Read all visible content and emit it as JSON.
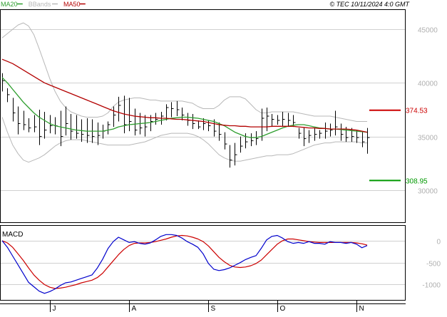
{
  "header": {
    "legend": [
      {
        "label": "MA20",
        "color": "#2e9e2e"
      },
      {
        "label": "BBands",
        "color": "#b8b8b8"
      },
      {
        "label": "MA50",
        "color": "#b30000"
      }
    ],
    "copyright": "© TEC 10/11/2024 4:0 GMT"
  },
  "chart_data": [
    {
      "type": "line",
      "name": "price",
      "x_labels": [
        "J",
        "A",
        "S",
        "O",
        "N"
      ],
      "y_ticks": [
        30000,
        35000,
        40000,
        45000
      ],
      "y_tick_labels": [
        "30000",
        "35000",
        "40000",
        "45000"
      ],
      "ylim": [
        27000,
        46800
      ],
      "grid": true,
      "levels": [
        {
          "value": 37453,
          "label": "374.53",
          "color": "#cc0000"
        },
        {
          "value": 30895,
          "label": "308.95",
          "color": "#009900"
        }
      ],
      "ohlc_series": {
        "name": "price",
        "color": "#000000",
        "high": [
          40900,
          39500,
          38600,
          37800,
          37400,
          36700,
          37000,
          37500,
          37300,
          37000,
          36800,
          37400,
          37800,
          37100,
          37000,
          36600,
          36700,
          36600,
          36300,
          36100,
          36400,
          37800,
          38700,
          38800,
          38600,
          37600,
          37200,
          37000,
          37000,
          37200,
          37300,
          38000,
          38200,
          38300,
          37700,
          37200,
          37100,
          36500,
          36700,
          36500,
          36600,
          36300,
          35400,
          34200,
          34400,
          35000,
          35300,
          35300,
          35500,
          37600,
          37700,
          37100,
          37000,
          37300,
          37200,
          37000,
          35800,
          35800,
          35600,
          35800,
          35600,
          36300,
          36200,
          37400,
          36200,
          35900,
          35800,
          35600,
          35400,
          35800
        ],
        "low": [
          39200,
          38200,
          36400,
          35200,
          35600,
          35400,
          35400,
          34200,
          34800,
          35300,
          35200,
          34100,
          35100,
          34700,
          34800,
          34500,
          34400,
          34400,
          34200,
          34800,
          35200,
          35900,
          36400,
          35300,
          35500,
          35100,
          35200,
          35000,
          35500,
          36100,
          36100,
          36500,
          36800,
          36900,
          36500,
          36000,
          35700,
          35700,
          35600,
          35500,
          35000,
          34600,
          33800,
          32100,
          32300,
          33500,
          33900,
          34100,
          34200,
          34600,
          35500,
          35900,
          36100,
          35900,
          35900,
          35900,
          34800,
          34100,
          34400,
          34600,
          34800,
          34800,
          35000,
          35100,
          34600,
          34500,
          34500,
          34400,
          34000,
          33400
        ],
        "close": [
          40200,
          38900,
          37200,
          36200,
          36100,
          35800,
          35900,
          35000,
          35600,
          36000,
          36000,
          35000,
          36200,
          35500,
          35300,
          35200,
          35100,
          35000,
          35100,
          35500,
          36100,
          37000,
          37900,
          36100,
          36400,
          35600,
          35800,
          35900,
          36400,
          36600,
          36900,
          37700,
          37600,
          37500,
          37000,
          36500,
          36200,
          35900,
          36200,
          36000,
          35500,
          35200,
          34300,
          32800,
          33300,
          34100,
          34500,
          34600,
          34800,
          36700,
          36900,
          36600,
          36500,
          36600,
          36500,
          36300,
          35300,
          34800,
          35100,
          35200,
          35300,
          35500,
          35600,
          35900,
          35200,
          34900,
          35000,
          34900,
          34500,
          34900
        ]
      },
      "series": [
        {
          "name": "MA20",
          "color": "#2e9e2e",
          "values": [
            40500,
            40000,
            39400,
            38800,
            38200,
            37700,
            37200,
            36800,
            36500,
            36200,
            36000,
            35900,
            35800,
            35700,
            35600,
            35550,
            35500,
            35500,
            35500,
            35500,
            35600,
            35700,
            35900,
            36000,
            36100,
            36150,
            36200,
            36250,
            36300,
            36400,
            36500,
            36600,
            36700,
            36750,
            36800,
            36800,
            36750,
            36700,
            36600,
            36500,
            36400,
            36200,
            36000,
            35700,
            35400,
            35200,
            35000,
            34900,
            34900,
            35000,
            35200,
            35400,
            35600,
            35800,
            35950,
            36050,
            36100,
            36100,
            36000,
            35900,
            35800,
            35750,
            35700,
            35700,
            35650,
            35600,
            35550,
            35500,
            35450,
            35400
          ]
        },
        {
          "name": "MA50",
          "color": "#b30000",
          "values": [
            42200,
            42000,
            41800,
            41500,
            41200,
            40900,
            40600,
            40300,
            40000,
            39800,
            39600,
            39400,
            39200,
            39000,
            38800,
            38600,
            38400,
            38200,
            38000,
            37800,
            37600,
            37400,
            37250,
            37100,
            37000,
            36900,
            36850,
            36800,
            36750,
            36750,
            36700,
            36700,
            36650,
            36600,
            36600,
            36550,
            36500,
            36450,
            36400,
            36300,
            36200,
            36100,
            36050,
            36000,
            36000,
            35950,
            35950,
            35900,
            35900,
            35900,
            35900,
            35950,
            35950,
            35950,
            35950,
            35950,
            35900,
            35850,
            35800,
            35800,
            35750,
            35750,
            35700,
            35700,
            35700,
            35700,
            35650,
            35600,
            35500,
            35400
          ]
        },
        {
          "name": "BBands upper",
          "color": "#b8b8b8",
          "values": [
            44200,
            44600,
            45000,
            45400,
            45600,
            45300,
            44500,
            43200,
            41800,
            40400,
            39200,
            38300,
            37700,
            37300,
            37100,
            36900,
            36800,
            36800,
            36800,
            36900,
            37200,
            37800,
            38200,
            38400,
            38500,
            38600,
            38600,
            38500,
            38400,
            38400,
            38300,
            38300,
            38300,
            38300,
            38300,
            38200,
            38100,
            37800,
            37600,
            37600,
            37600,
            37900,
            38400,
            38700,
            38700,
            38700,
            38500,
            38000,
            37500,
            37200,
            37200,
            37300,
            37300,
            37300,
            37300,
            37300,
            37200,
            37100,
            37000,
            36900,
            36900,
            36900,
            36900,
            36800,
            36700,
            36600,
            36500,
            36400,
            36400,
            36400
          ]
        },
        {
          "name": "BBands lower",
          "color": "#b8b8b8",
          "values": [
            36800,
            35400,
            34200,
            33400,
            32800,
            32600,
            32800,
            33000,
            33300,
            33700,
            34100,
            34400,
            34600,
            34700,
            34700,
            34700,
            34600,
            34500,
            34400,
            34300,
            34200,
            34200,
            34200,
            34200,
            34200,
            34300,
            34400,
            34500,
            34700,
            34900,
            35100,
            35200,
            35300,
            35300,
            35300,
            35300,
            35200,
            35000,
            34700,
            34300,
            33800,
            33300,
            33000,
            32800,
            32700,
            32700,
            32800,
            32900,
            33000,
            33100,
            33200,
            33200,
            33300,
            33300,
            33300,
            33400,
            33600,
            33800,
            34000,
            34200,
            34300,
            34400,
            34400,
            34500,
            34500,
            34500,
            34500,
            34500,
            34400,
            34400
          ]
        }
      ]
    },
    {
      "type": "line",
      "name": "MACD",
      "title": "MACD",
      "x_labels": [
        "J",
        "A",
        "S",
        "O",
        "N"
      ],
      "y_ticks": [
        0,
        -500,
        -1000
      ],
      "y_tick_labels": [
        "0",
        "-500",
        "-1000"
      ],
      "ylim": [
        -1350,
        340
      ],
      "grid": true,
      "series": [
        {
          "name": "MACD",
          "color": "#0000cc",
          "values": [
            0,
            -150,
            -350,
            -550,
            -750,
            -950,
            -1050,
            -1150,
            -1200,
            -1160,
            -1100,
            -1020,
            -960,
            -940,
            -900,
            -860,
            -820,
            -780,
            -620,
            -420,
            -180,
            -20,
            80,
            20,
            -40,
            -20,
            -60,
            -80,
            -50,
            20,
            100,
            140,
            140,
            120,
            60,
            -20,
            -80,
            -150,
            -300,
            -520,
            -650,
            -680,
            -660,
            -620,
            -560,
            -500,
            -430,
            -380,
            -340,
            -170,
            20,
            100,
            120,
            60,
            -20,
            -60,
            -40,
            -60,
            -20,
            -60,
            -60,
            -80,
            -20,
            -40,
            -40,
            -60,
            -40,
            -80,
            -160,
            -110
          ]
        },
        {
          "name": "Signal",
          "color": "#cc0000",
          "values": [
            0,
            -50,
            -150,
            -300,
            -450,
            -620,
            -780,
            -900,
            -1000,
            -1060,
            -1090,
            -1080,
            -1060,
            -1030,
            -1000,
            -960,
            -930,
            -900,
            -840,
            -740,
            -600,
            -460,
            -320,
            -200,
            -110,
            -60,
            -50,
            -50,
            -40,
            -20,
            10,
            40,
            80,
            110,
            120,
            110,
            80,
            40,
            -20,
            -120,
            -250,
            -380,
            -480,
            -560,
            -600,
            -610,
            -600,
            -570,
            -520,
            -440,
            -320,
            -200,
            -80,
            0,
            40,
            40,
            20,
            0,
            -20,
            -30,
            -40,
            -40,
            -40,
            -40,
            -40,
            -40,
            -40,
            -50,
            -70,
            -100
          ]
        }
      ]
    }
  ]
}
